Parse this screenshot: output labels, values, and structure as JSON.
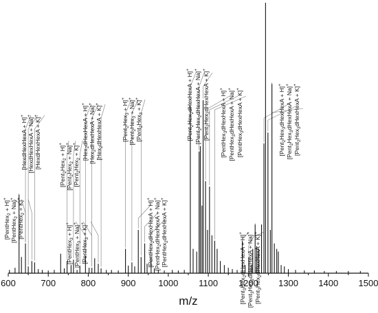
{
  "chart_data": {
    "type": "line",
    "title": "",
    "xlabel": "m/z",
    "ylabel": "",
    "xlim": [
      600,
      1500
    ],
    "xticks": [
      "600",
      "700",
      "800",
      "900",
      "1000",
      "1100",
      "1200",
      "1300",
      "1400",
      "1500"
    ],
    "grid": false,
    "peaks": [
      {
        "x": 603,
        "y": 0.012
      },
      {
        "x": 617,
        "y": 0.02
      },
      {
        "x": 627,
        "y": 0.29
      },
      {
        "x": 633,
        "y": 0.06
      },
      {
        "x": 643,
        "y": 0.11
      },
      {
        "x": 650,
        "y": 0.025
      },
      {
        "x": 659,
        "y": 0.045
      },
      {
        "x": 666,
        "y": 0.04
      },
      {
        "x": 675,
        "y": 0.015
      },
      {
        "x": 685,
        "y": 0.012
      },
      {
        "x": 700,
        "y": 0.01
      },
      {
        "x": 715,
        "y": 0.012
      },
      {
        "x": 731,
        "y": 0.072
      },
      {
        "x": 740,
        "y": 0.018
      },
      {
        "x": 747,
        "y": 0.045
      },
      {
        "x": 757,
        "y": 0.03
      },
      {
        "x": 763,
        "y": 0.05
      },
      {
        "x": 772,
        "y": 0.012
      },
      {
        "x": 779,
        "y": 0.028
      },
      {
        "x": 793,
        "y": 0.065
      },
      {
        "x": 802,
        "y": 0.02
      },
      {
        "x": 809,
        "y": 0.02
      },
      {
        "x": 816,
        "y": 0.055
      },
      {
        "x": 825,
        "y": 0.035
      },
      {
        "x": 832,
        "y": 0.018
      },
      {
        "x": 845,
        "y": 0.012
      },
      {
        "x": 858,
        "y": 0.012
      },
      {
        "x": 875,
        "y": 0.01
      },
      {
        "x": 893,
        "y": 0.09
      },
      {
        "x": 900,
        "y": 0.028
      },
      {
        "x": 909,
        "y": 0.04
      },
      {
        "x": 916,
        "y": 0.025
      },
      {
        "x": 925,
        "y": 0.16
      },
      {
        "x": 932,
        "y": 0.06
      },
      {
        "x": 941,
        "y": 0.11
      },
      {
        "x": 947,
        "y": 0.035
      },
      {
        "x": 957,
        "y": 0.06
      },
      {
        "x": 965,
        "y": 0.018
      },
      {
        "x": 975,
        "y": 0.012
      },
      {
        "x": 990,
        "y": 0.01
      },
      {
        "x": 1010,
        "y": 0.012
      },
      {
        "x": 1025,
        "y": 0.01
      },
      {
        "x": 1040,
        "y": 0.012
      },
      {
        "x": 1055,
        "y": 0.62
      },
      {
        "x": 1062,
        "y": 0.09
      },
      {
        "x": 1071,
        "y": 0.08
      },
      {
        "x": 1077,
        "y": 0.45
      },
      {
        "x": 1080,
        "y": 0.47
      },
      {
        "x": 1084,
        "y": 0.25
      },
      {
        "x": 1087,
        "y": 0.64
      },
      {
        "x": 1093,
        "y": 0.34
      },
      {
        "x": 1098,
        "y": 0.16
      },
      {
        "x": 1103,
        "y": 0.32
      },
      {
        "x": 1109,
        "y": 0.14
      },
      {
        "x": 1116,
        "y": 0.12
      },
      {
        "x": 1122,
        "y": 0.09
      },
      {
        "x": 1130,
        "y": 0.045
      },
      {
        "x": 1140,
        "y": 0.03
      },
      {
        "x": 1150,
        "y": 0.02
      },
      {
        "x": 1160,
        "y": 0.015
      },
      {
        "x": 1172,
        "y": 0.012
      },
      {
        "x": 1185,
        "y": 0.12
      },
      {
        "x": 1192,
        "y": 0.03
      },
      {
        "x": 1201,
        "y": 0.06
      },
      {
        "x": 1208,
        "y": 0.03
      },
      {
        "x": 1211,
        "y": 0.09
      },
      {
        "x": 1217,
        "y": 0.18
      },
      {
        "x": 1221,
        "y": 0.1
      },
      {
        "x": 1226,
        "y": 0.09
      },
      {
        "x": 1233,
        "y": 0.18
      },
      {
        "x": 1239,
        "y": 0.48
      },
      {
        "x": 1243,
        "y": 1.0
      },
      {
        "x": 1249,
        "y": 0.52
      },
      {
        "x": 1255,
        "y": 0.16
      },
      {
        "x": 1259,
        "y": 0.7
      },
      {
        "x": 1265,
        "y": 0.11
      },
      {
        "x": 1271,
        "y": 0.09
      },
      {
        "x": 1275,
        "y": 0.08
      },
      {
        "x": 1282,
        "y": 0.03
      },
      {
        "x": 1290,
        "y": 0.025
      },
      {
        "x": 1300,
        "y": 0.015
      },
      {
        "x": 1318,
        "y": 0.012
      },
      {
        "x": 1340,
        "y": 0.01
      },
      {
        "x": 1365,
        "y": 0.01
      },
      {
        "x": 1390,
        "y": 0.008
      },
      {
        "x": 1420,
        "y": 0.008
      },
      {
        "x": 1450,
        "y": 0.008
      },
      {
        "x": 1480,
        "y": 0.008
      }
    ],
    "annotations": [
      {
        "group": 1,
        "mz": 627,
        "lines": [
          "[PentHex",
          "2",
          " + H]",
          "+"
        ]
      },
      {
        "group": 1,
        "mz": 643,
        "lines": [
          "[PentHex",
          "2",
          " + Na]",
          "+"
        ]
      },
      {
        "group": 1,
        "mz": 659,
        "lines": [
          "[PentHex",
          "2",
          " + K]",
          "+"
        ]
      },
      {
        "group": 2,
        "mz": 643,
        "lines": [
          "[HexdHexHexA + H]",
          "+"
        ]
      },
      {
        "group": 2,
        "mz": 650,
        "lines": [
          "[HexdHexHexA + Na]",
          "+"
        ]
      },
      {
        "group": 2,
        "mz": 666,
        "lines": [
          "[HexdHexHexA + K]",
          "+"
        ]
      },
      {
        "group": 3,
        "mz": 747,
        "lines": [
          "[Pent",
          "2",
          "Hex",
          "2",
          " + H]",
          "+"
        ]
      },
      {
        "group": 3,
        "mz": 763,
        "lines": [
          "[Pent",
          "2",
          "Hex",
          "2",
          " + Na]",
          "+"
        ]
      },
      {
        "group": 3,
        "mz": 779,
        "lines": [
          "[Pent",
          "2",
          "Hex",
          "2",
          " + K]",
          "+"
        ]
      },
      {
        "group": 4,
        "mz": 793,
        "lines": [
          "[PentHex",
          "3",
          " + H]",
          "+"
        ]
      },
      {
        "group": 4,
        "mz": 809,
        "lines": [
          "[PentHex",
          "3",
          " + Na]",
          "+"
        ]
      },
      {
        "group": 4,
        "mz": 825,
        "lines": [
          "[PentHex",
          "3",
          " + K]",
          "+"
        ]
      },
      {
        "group": 5,
        "mz": 793,
        "lines": [
          "[Hex",
          "2",
          "dHexHexA + H]",
          "+"
        ]
      },
      {
        "group": 5,
        "mz": 809,
        "lines": [
          "[Hex",
          "2",
          "dHexHexA + Na]",
          "+"
        ]
      },
      {
        "group": 5,
        "mz": 832,
        "lines": [
          "[Hex",
          "2",
          "dHexHexA + K]",
          "+"
        ]
      },
      {
        "group": 6,
        "mz": 893,
        "lines": [
          "[Pent",
          "2",
          "Hex",
          "3",
          " + H]",
          "+"
        ]
      },
      {
        "group": 6,
        "mz": 909,
        "lines": [
          "[Pent",
          "2",
          "Hex",
          "3",
          " + Na]",
          "+"
        ]
      },
      {
        "group": 6,
        "mz": 932,
        "lines": [
          "[Pent",
          "2",
          "Hex",
          "3",
          " + K]",
          "+"
        ]
      },
      {
        "group": 7,
        "mz": 925,
        "lines": [
          "[PentHex",
          "2",
          "dHexHexA + H]",
          "+"
        ]
      },
      {
        "group": 7,
        "mz": 941,
        "lines": [
          "[PentHex",
          "2",
          "dHexHexA + Na]",
          "+"
        ]
      },
      {
        "group": 7,
        "mz": 957,
        "lines": [
          "[PentHex",
          "2",
          "dHexHexA + K]",
          "+"
        ]
      },
      {
        "group": 8,
        "mz": 1055,
        "lines": [
          "[Pent",
          "2",
          "Hex",
          "2",
          "dHexHexA + H]",
          "+"
        ]
      },
      {
        "group": 8,
        "mz": 1077,
        "lines": [
          "[Pent",
          "2",
          "Hex",
          "2",
          "dHexHexA + Na]",
          "+"
        ]
      },
      {
        "group": 8,
        "mz": 1087,
        "lines": [
          "[Pent",
          "2",
          "Hex",
          "2",
          "dHexHexA + K]",
          "+"
        ]
      },
      {
        "group": 9,
        "mz": 1093,
        "lines": [
          "[PentHex",
          "3",
          "dHexHexA + H]",
          "+"
        ]
      },
      {
        "group": 9,
        "mz": 1103,
        "lines": [
          "[PentHex",
          "3",
          "dHexHexA + Na]",
          "+"
        ]
      },
      {
        "group": 9,
        "mz": 1116,
        "lines": [
          "[PentHex",
          "3",
          "dHexHexA + K]",
          "+"
        ]
      },
      {
        "group": 10,
        "mz": 1185,
        "lines": [
          "[Pent",
          "3",
          "Hex",
          "2",
          "dHexHexA + H]",
          "+"
        ]
      },
      {
        "group": 10,
        "mz": 1201,
        "lines": [
          "[Pent",
          "3",
          "Hex",
          "2",
          "dHexHexA + Na]",
          "+"
        ]
      },
      {
        "group": 10,
        "mz": 1217,
        "lines": [
          "[Pent",
          "3",
          "Hex",
          "2",
          "dHexHexA + K]",
          "+"
        ]
      },
      {
        "group": 11,
        "mz": 1239,
        "lines": [
          "[Pent",
          "2",
          "Hex",
          "3",
          "dHexHexA + H]",
          "+"
        ]
      },
      {
        "group": 11,
        "mz": 1249,
        "lines": [
          "[Pent",
          "2",
          "Hex",
          "3",
          "dHexHexA + Na]",
          "+"
        ]
      },
      {
        "group": 11,
        "mz": 1259,
        "lines": [
          "[Pent",
          "2",
          "Hex",
          "3",
          "dHexHexA + K]",
          "+"
        ]
      }
    ]
  }
}
